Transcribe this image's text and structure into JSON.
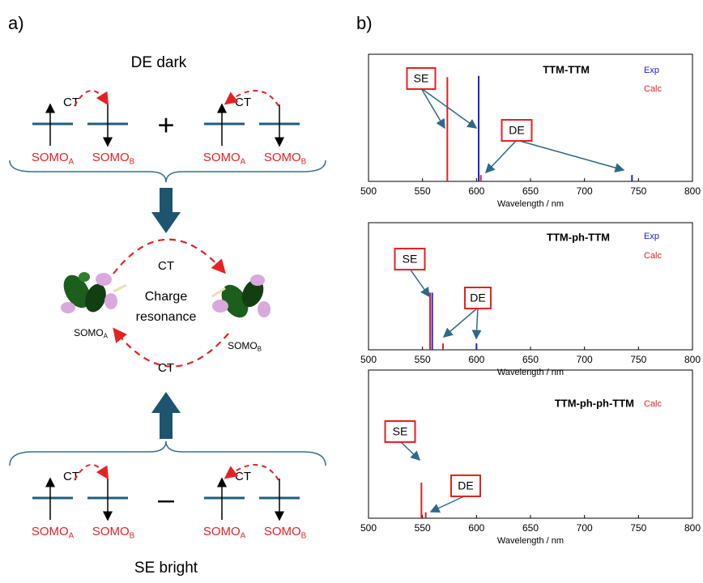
{
  "panel_a": {
    "label": "a)",
    "top_title": "DE dark",
    "top_row": {
      "ct": [
        "CT",
        "CT"
      ],
      "operator": "+",
      "somo": [
        {
          "base": "SOMO",
          "sub": "A"
        },
        {
          "base": "SOMO",
          "sub": "B"
        },
        {
          "base": "SOMO",
          "sub": "A"
        },
        {
          "base": "SOMO",
          "sub": "B"
        }
      ]
    },
    "middle": {
      "ct": [
        "CT",
        "CT"
      ],
      "center": [
        "Charge",
        "resonance"
      ],
      "somo": [
        {
          "base": "SOMO",
          "sub": "A"
        },
        {
          "base": "SOMO",
          "sub": "B"
        }
      ]
    },
    "bottom_row": {
      "ct": [
        "CT",
        "CT"
      ],
      "operator": "–",
      "somo": [
        {
          "base": "SOMO",
          "sub": "A"
        },
        {
          "base": "SOMO",
          "sub": "B"
        },
        {
          "base": "SOMO",
          "sub": "A"
        },
        {
          "base": "SOMO",
          "sub": "B"
        }
      ]
    },
    "bottom_title": "SE bright"
  },
  "panel_b": {
    "label": "b)"
  },
  "chart_data": [
    {
      "type": "stick",
      "title": "TTM-TTM",
      "x_label": "Wavelength / nm",
      "annotations": [
        "SE",
        "DE"
      ],
      "xlim": [
        500,
        800
      ],
      "xticks": [
        500,
        550,
        600,
        650,
        700,
        750,
        800
      ],
      "ylim": [
        0,
        1
      ],
      "series": [
        {
          "name": "Exp",
          "color": "#2020e0",
          "x": [
            602,
            744
          ],
          "values": [
            0.83,
            0.05
          ]
        },
        {
          "name": "Calc",
          "color": "#e02020",
          "x": [
            573,
            604
          ],
          "values": [
            0.82,
            0.05
          ]
        }
      ]
    },
    {
      "type": "stick",
      "title": "TTM-ph-TTM",
      "x_label": "Wavelength / nm",
      "annotations": [
        "SE",
        "DE"
      ],
      "xlim": [
        500,
        800
      ],
      "xticks": [
        500,
        550,
        600,
        650,
        700,
        750,
        800
      ],
      "ylim": [
        0,
        1
      ],
      "series": [
        {
          "name": "Exp",
          "color": "#2020e0",
          "x": [
            559,
            600
          ],
          "values": [
            0.45,
            0.05
          ]
        },
        {
          "name": "Calc",
          "color": "#e02020",
          "x": [
            557,
            569
          ],
          "values": [
            0.45,
            0.05
          ]
        }
      ]
    },
    {
      "type": "stick",
      "title": "TTM-ph-ph-TTM",
      "x_label": "Wavelength / nm",
      "annotations": [
        "SE",
        "DE"
      ],
      "xlim": [
        500,
        800
      ],
      "xticks": [
        500,
        550,
        600,
        650,
        700,
        750,
        800
      ],
      "ylim": [
        0,
        1
      ],
      "series": [
        {
          "name": "Calc",
          "color": "#e02020",
          "x": [
            549,
            553
          ],
          "values": [
            0.24,
            0.04
          ]
        }
      ]
    }
  ]
}
